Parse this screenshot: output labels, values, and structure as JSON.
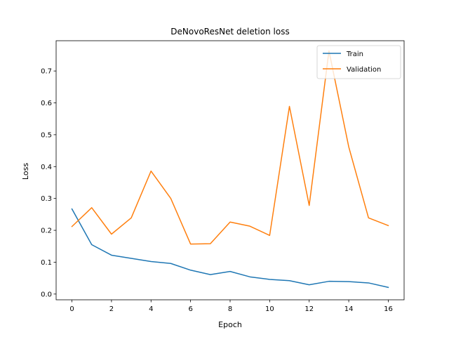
{
  "chart_data": {
    "type": "line",
    "title": "DeNovoResNet deletion loss",
    "xlabel": "Epoch",
    "ylabel": "Loss",
    "x": [
      0,
      1,
      2,
      3,
      4,
      5,
      6,
      7,
      8,
      9,
      10,
      11,
      12,
      13,
      14,
      15,
      16
    ],
    "xlim": [
      -0.8,
      16.8
    ],
    "ylim": [
      -0.018,
      0.795
    ],
    "xticks": [
      0,
      2,
      4,
      6,
      8,
      10,
      12,
      14,
      16
    ],
    "yticks": [
      0.0,
      0.1,
      0.2,
      0.3,
      0.4,
      0.5,
      0.6,
      0.7
    ],
    "ytick_labels": [
      "0.0",
      "0.1",
      "0.2",
      "0.3",
      "0.4",
      "0.5",
      "0.6",
      "0.7"
    ],
    "grid": false,
    "legend_position": "top-right",
    "series": [
      {
        "name": "Train",
        "color": "#1f77b4",
        "values": [
          0.267,
          0.155,
          0.122,
          0.112,
          0.102,
          0.096,
          0.075,
          0.061,
          0.071,
          0.054,
          0.046,
          0.042,
          0.029,
          0.04,
          0.039,
          0.035,
          0.021
        ]
      },
      {
        "name": "Validation",
        "color": "#ff7f0e",
        "values": [
          0.212,
          0.271,
          0.188,
          0.239,
          0.386,
          0.3,
          0.157,
          0.158,
          0.226,
          0.213,
          0.184,
          0.589,
          0.278,
          0.763,
          0.462,
          0.239,
          0.215
        ]
      }
    ]
  }
}
